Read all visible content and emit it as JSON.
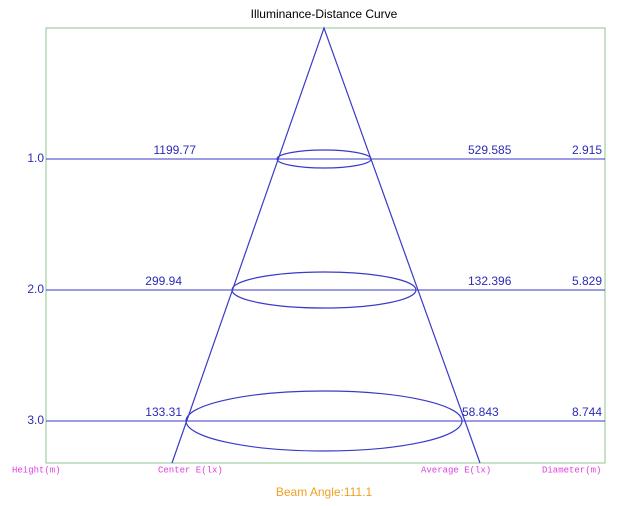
{
  "title": "Illuminance-Distance Curve",
  "rows": [
    {
      "height": "1.0",
      "center_e": "1199.77",
      "average_e": "529.585",
      "diameter": "2.915"
    },
    {
      "height": "2.0",
      "center_e": "299.94",
      "average_e": "132.396",
      "diameter": "5.829"
    },
    {
      "height": "3.0",
      "center_e": "133.31",
      "average_e": "58.843",
      "diameter": "8.744"
    }
  ],
  "columns": {
    "height": "Height(m)",
    "center_e": "Center E(lx)",
    "average_e": "Average E(lx)",
    "diameter": "Diameter(m)"
  },
  "beam_angle": "Beam Angle:111.1"
}
